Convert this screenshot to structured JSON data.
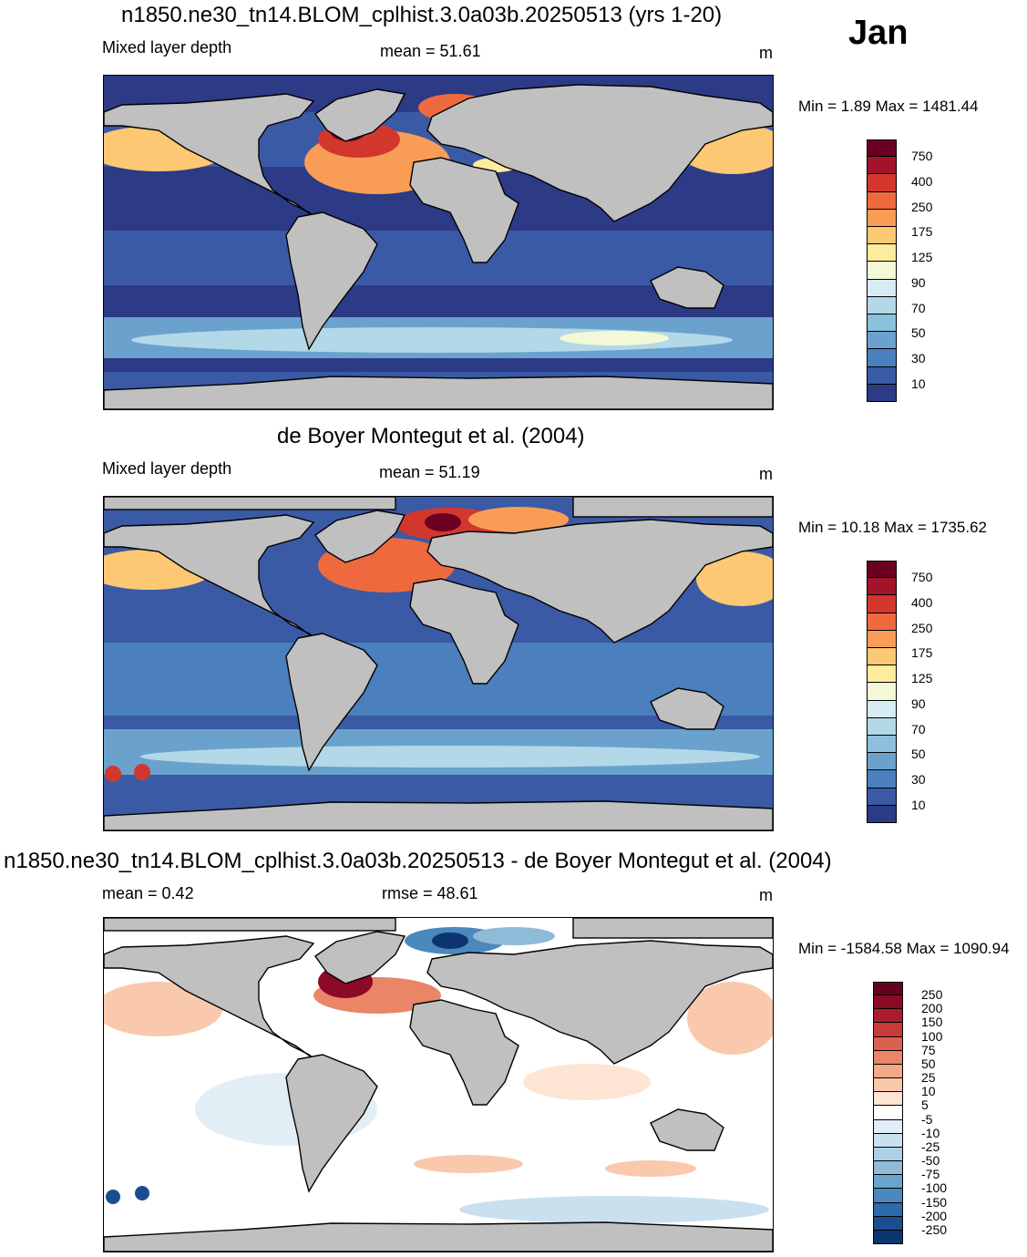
{
  "month": "Jan",
  "panels": [
    {
      "title": "n1850.ne30_tn14.BLOM_cplhist.3.0a03b.20250513 (yrs 1-20)",
      "left_label": "Mixed layer depth",
      "center_label": "mean =  51.61",
      "unit": "m",
      "minmax": "Min =   1.89 Max = 1481.44"
    },
    {
      "title": "de Boyer Montegut et al. (2004)",
      "left_label": "Mixed layer depth",
      "center_label": "mean =  51.19",
      "unit": "m",
      "minmax": "Min =  10.18 Max = 1735.62"
    },
    {
      "title": "n1850.ne30_tn14.BLOM_cplhist.3.0a03b.20250513 - de Boyer Montegut et al. (2004)",
      "left_label": "mean =   0.42",
      "center_label": "rmse =  48.61",
      "unit": "m",
      "minmax": "Min = -1584.58 Max = 1090.94"
    }
  ],
  "colorbar_abs": {
    "labels": [
      "750",
      "400",
      "250",
      "175",
      "125",
      "90",
      "70",
      "50",
      "30",
      "10"
    ],
    "colors": [
      "#6b0020",
      "#a3142a",
      "#d2372e",
      "#ee6a3e",
      "#f99d56",
      "#fcc873",
      "#fdeb9e",
      "#f3f8d6",
      "#d6ebf2",
      "#b3d8e8",
      "#8cc0dc",
      "#6aa2cd",
      "#4b7fbd",
      "#3a5aa5",
      "#2d3a86"
    ]
  },
  "colorbar_diff": {
    "labels": [
      "250",
      "200",
      "150",
      "100",
      "75",
      "50",
      "25",
      "10",
      "5",
      "-5",
      "-10",
      "-25",
      "-50",
      "-75",
      "-100",
      "-150",
      "-200",
      "-250"
    ],
    "colors": [
      "#67001f",
      "#8b0a26",
      "#ad1c2d",
      "#c93a3a",
      "#dc6050",
      "#ea8567",
      "#f5a986",
      "#fac8ad",
      "#fde4d3",
      "#ffffff",
      "#e2eef6",
      "#c9e0ef",
      "#aed0e6",
      "#8fbbd9",
      "#6aa3cc",
      "#4b88bd",
      "#2f6aa9",
      "#1b4e91",
      "#0d3570"
    ]
  },
  "colors": {
    "land": "#c0c0c0",
    "coast": "#000000"
  }
}
